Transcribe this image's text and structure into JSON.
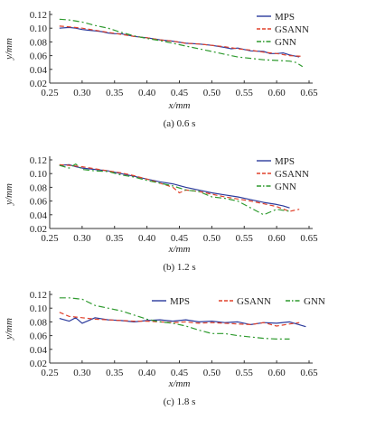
{
  "colors": {
    "MPS": "#2b3a9c",
    "GSANN": "#e0402a",
    "GNN": "#2e9a2e",
    "axis": "#333333"
  },
  "chart_data": [
    {
      "type": "line",
      "caption": "(a) 0.6 s",
      "xlabel": "x/mm",
      "ylabel": "y/mm",
      "xlim": [
        0.25,
        0.65
      ],
      "ylim": [
        0.02,
        0.12
      ],
      "xticks": [
        "0.25",
        "0.30",
        "0.35",
        "0.40",
        "0.45",
        "0.50",
        "0.55",
        "0.60",
        "0.65"
      ],
      "yticks": [
        "0.02",
        "0.04",
        "0.06",
        "0.08",
        "0.10",
        "0.12"
      ],
      "legend": "top-right-vertical",
      "series": [
        {
          "name": "MPS",
          "style": "solid",
          "x": [
            0.265,
            0.28,
            0.29,
            0.3,
            0.31,
            0.32,
            0.33,
            0.34,
            0.35,
            0.36,
            0.37,
            0.38,
            0.4,
            0.42,
            0.44,
            0.46,
            0.48,
            0.5,
            0.52,
            0.53,
            0.54,
            0.55,
            0.56,
            0.58,
            0.59,
            0.6,
            0.61,
            0.62,
            0.635
          ],
          "y": [
            0.1,
            0.101,
            0.1,
            0.098,
            0.097,
            0.096,
            0.095,
            0.093,
            0.092,
            0.092,
            0.09,
            0.088,
            0.086,
            0.083,
            0.081,
            0.078,
            0.077,
            0.075,
            0.072,
            0.07,
            0.071,
            0.069,
            0.067,
            0.066,
            0.063,
            0.063,
            0.064,
            0.061,
            0.058
          ]
        },
        {
          "name": "GSANN",
          "style": "dashed",
          "x": [
            0.265,
            0.28,
            0.3,
            0.32,
            0.34,
            0.36,
            0.38,
            0.4,
            0.42,
            0.44,
            0.46,
            0.48,
            0.5,
            0.52,
            0.54,
            0.56,
            0.58,
            0.6,
            0.62,
            0.64
          ],
          "y": [
            0.103,
            0.102,
            0.1,
            0.097,
            0.094,
            0.091,
            0.088,
            0.086,
            0.083,
            0.081,
            0.078,
            0.077,
            0.075,
            0.073,
            0.07,
            0.068,
            0.065,
            0.063,
            0.06,
            0.059
          ]
        },
        {
          "name": "GNN",
          "style": "dashdot",
          "x": [
            0.265,
            0.28,
            0.3,
            0.32,
            0.34,
            0.36,
            0.38,
            0.4,
            0.42,
            0.44,
            0.46,
            0.48,
            0.5,
            0.52,
            0.54,
            0.56,
            0.58,
            0.6,
            0.62,
            0.63,
            0.64
          ],
          "y": [
            0.113,
            0.112,
            0.109,
            0.104,
            0.1,
            0.094,
            0.089,
            0.085,
            0.082,
            0.078,
            0.074,
            0.07,
            0.066,
            0.062,
            0.058,
            0.056,
            0.054,
            0.053,
            0.052,
            0.05,
            0.044
          ]
        }
      ]
    },
    {
      "type": "line",
      "caption": "(b) 1.2 s",
      "xlabel": "x/mm",
      "ylabel": "y/mm",
      "xlim": [
        0.25,
        0.65
      ],
      "ylim": [
        0.02,
        0.12
      ],
      "xticks": [
        "0.25",
        "0.30",
        "0.35",
        "0.40",
        "0.45",
        "0.50",
        "0.55",
        "0.60",
        "0.65"
      ],
      "yticks": [
        "0.02",
        "0.04",
        "0.06",
        "0.08",
        "0.10",
        "0.12"
      ],
      "legend": "top-right-vertical",
      "series": [
        {
          "name": "MPS",
          "style": "solid",
          "x": [
            0.265,
            0.28,
            0.29,
            0.3,
            0.32,
            0.34,
            0.36,
            0.38,
            0.4,
            0.42,
            0.44,
            0.46,
            0.48,
            0.5,
            0.52,
            0.54,
            0.56,
            0.58,
            0.6,
            0.61,
            0.62
          ],
          "y": [
            0.112,
            0.113,
            0.11,
            0.108,
            0.106,
            0.104,
            0.1,
            0.096,
            0.092,
            0.088,
            0.085,
            0.08,
            0.076,
            0.072,
            0.069,
            0.066,
            0.062,
            0.058,
            0.055,
            0.053,
            0.05
          ]
        },
        {
          "name": "GSANN",
          "style": "dashed",
          "x": [
            0.265,
            0.28,
            0.3,
            0.32,
            0.34,
            0.36,
            0.38,
            0.4,
            0.42,
            0.44,
            0.45,
            0.46,
            0.48,
            0.5,
            0.52,
            0.54,
            0.56,
            0.58,
            0.6,
            0.62,
            0.635
          ],
          "y": [
            0.113,
            0.112,
            0.11,
            0.107,
            0.104,
            0.101,
            0.097,
            0.092,
            0.086,
            0.08,
            0.072,
            0.076,
            0.074,
            0.07,
            0.066,
            0.063,
            0.06,
            0.056,
            0.052,
            0.045,
            0.048
          ]
        },
        {
          "name": "GNN",
          "style": "dashdot",
          "x": [
            0.265,
            0.28,
            0.29,
            0.3,
            0.32,
            0.34,
            0.36,
            0.38,
            0.4,
            0.42,
            0.44,
            0.46,
            0.48,
            0.5,
            0.52,
            0.54,
            0.56,
            0.57,
            0.58,
            0.6,
            0.62
          ],
          "y": [
            0.112,
            0.108,
            0.114,
            0.106,
            0.104,
            0.103,
            0.098,
            0.095,
            0.09,
            0.086,
            0.082,
            0.076,
            0.074,
            0.066,
            0.064,
            0.06,
            0.05,
            0.045,
            0.04,
            0.048,
            0.045
          ]
        }
      ]
    },
    {
      "type": "line",
      "caption": "(c) 1.8 s",
      "xlabel": "x/mm",
      "ylabel": "y/mm",
      "xlim": [
        0.25,
        0.65
      ],
      "ylim": [
        0.02,
        0.12
      ],
      "xticks": [
        "0.25",
        "0.30",
        "0.35",
        "0.40",
        "0.45",
        "0.50",
        "0.55",
        "0.60",
        "0.65"
      ],
      "yticks": [
        "0.02",
        "0.04",
        "0.06",
        "0.08",
        "0.10",
        "0.12"
      ],
      "legend": "top-right-horizontal",
      "series": [
        {
          "name": "MPS",
          "style": "solid",
          "x": [
            0.265,
            0.28,
            0.29,
            0.3,
            0.31,
            0.32,
            0.34,
            0.36,
            0.38,
            0.4,
            0.42,
            0.44,
            0.46,
            0.48,
            0.5,
            0.52,
            0.54,
            0.56,
            0.58,
            0.6,
            0.62,
            0.645
          ],
          "y": [
            0.085,
            0.081,
            0.086,
            0.078,
            0.082,
            0.086,
            0.083,
            0.082,
            0.08,
            0.082,
            0.083,
            0.081,
            0.083,
            0.08,
            0.081,
            0.079,
            0.08,
            0.076,
            0.079,
            0.078,
            0.08,
            0.073
          ]
        },
        {
          "name": "GSANN",
          "style": "dashed",
          "x": [
            0.265,
            0.28,
            0.3,
            0.32,
            0.34,
            0.36,
            0.38,
            0.4,
            0.42,
            0.44,
            0.46,
            0.48,
            0.5,
            0.52,
            0.54,
            0.56,
            0.58,
            0.6,
            0.62,
            0.635
          ],
          "y": [
            0.094,
            0.088,
            0.086,
            0.084,
            0.083,
            0.082,
            0.081,
            0.081,
            0.08,
            0.079,
            0.08,
            0.078,
            0.079,
            0.078,
            0.077,
            0.076,
            0.079,
            0.074,
            0.077,
            0.079
          ]
        },
        {
          "name": "GNN",
          "style": "dashdot",
          "x": [
            0.265,
            0.28,
            0.3,
            0.32,
            0.34,
            0.36,
            0.38,
            0.4,
            0.42,
            0.44,
            0.46,
            0.48,
            0.5,
            0.52,
            0.54,
            0.56,
            0.58,
            0.6,
            0.62
          ],
          "y": [
            0.115,
            0.115,
            0.113,
            0.104,
            0.1,
            0.096,
            0.09,
            0.084,
            0.08,
            0.078,
            0.074,
            0.068,
            0.063,
            0.063,
            0.06,
            0.058,
            0.056,
            0.055,
            0.055
          ]
        }
      ]
    }
  ]
}
